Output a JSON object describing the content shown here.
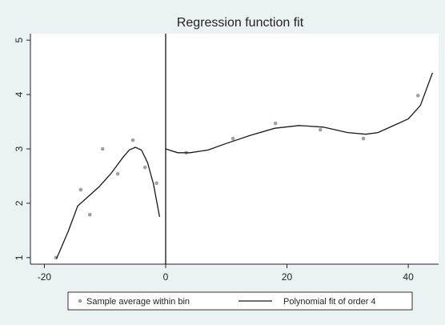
{
  "chart_data": {
    "type": "scatter-line",
    "title": "Regression function fit",
    "xlim": [
      -22.3,
      45
    ],
    "ylim": [
      0.88,
      5.12
    ],
    "xticks": [
      -20,
      0,
      20,
      40
    ],
    "yticks": [
      1,
      2,
      3,
      4,
      5
    ],
    "xline": 0,
    "series": [
      {
        "name": "Sample average within bin",
        "kind": "scatter",
        "color": "#a0a0a0",
        "x": [
          -18.1,
          -14.0,
          -12.5,
          -10.4,
          -7.9,
          -5.4,
          -3.4,
          -1.5,
          3.4,
          11.1,
          18.1,
          25.5,
          32.6,
          41.6
        ],
        "values": [
          1.0,
          2.25,
          1.79,
          3.0,
          2.54,
          3.16,
          2.66,
          2.37,
          2.93,
          3.19,
          3.47,
          3.35,
          3.19,
          3.98
        ]
      },
      {
        "name": "Polynomial fit of order 4",
        "kind": "line",
        "color": "#1a1a1a",
        "x": [
          -18,
          -16,
          -14.5,
          -13,
          -11,
          -9,
          -7,
          -6,
          -5,
          -4,
          -3,
          -2,
          -1,
          null,
          0,
          2,
          4,
          7,
          10,
          14,
          18,
          22,
          26,
          30,
          33,
          35,
          38,
          40,
          42,
          44
        ],
        "values": [
          0.98,
          1.5,
          1.95,
          2.1,
          2.3,
          2.55,
          2.85,
          2.98,
          3.03,
          2.98,
          2.75,
          2.35,
          1.75,
          null,
          3.0,
          2.93,
          2.93,
          2.98,
          3.1,
          3.25,
          3.38,
          3.43,
          3.4,
          3.3,
          3.27,
          3.3,
          3.45,
          3.55,
          3.8,
          4.4
        ]
      }
    ]
  }
}
